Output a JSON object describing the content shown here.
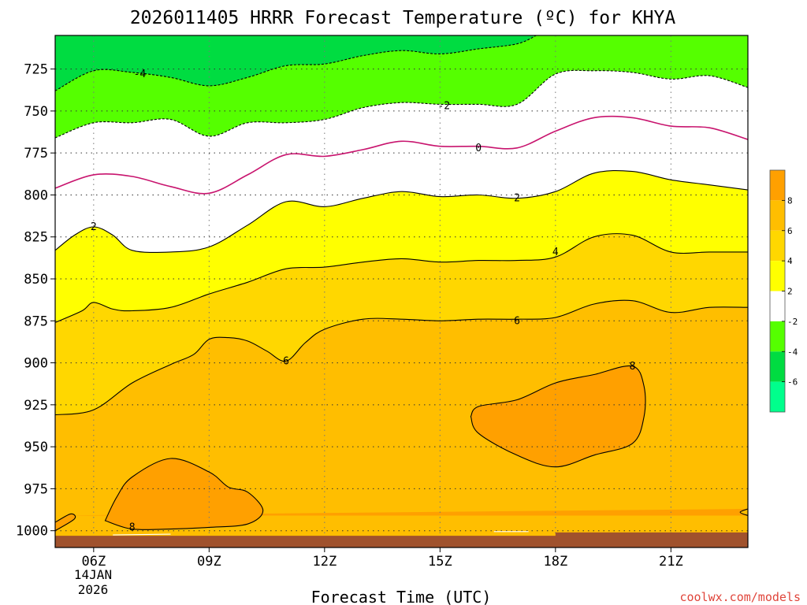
{
  "chart_data": {
    "type": "contour",
    "title": "2026011405 HRRR Forecast Temperature (ºC) for KHYA",
    "xlabel": "Forecast Time (UTC)",
    "ylabel": "",
    "date_label": [
      "14JAN",
      "2026"
    ],
    "credit": "coolwx.com/models",
    "x_range_hours": [
      5,
      23
    ],
    "y_range_hpa": [
      1010,
      705
    ],
    "x_ticks": [
      {
        "hour": 6,
        "label": "06Z"
      },
      {
        "hour": 9,
        "label": "09Z"
      },
      {
        "hour": 12,
        "label": "12Z"
      },
      {
        "hour": 15,
        "label": "15Z"
      },
      {
        "hour": 18,
        "label": "18Z"
      },
      {
        "hour": 21,
        "label": "21Z"
      }
    ],
    "y_ticks": [
      {
        "hpa": 725,
        "label": "725"
      },
      {
        "hpa": 750,
        "label": "750"
      },
      {
        "hpa": 775,
        "label": "775"
      },
      {
        "hpa": 800,
        "label": "800"
      },
      {
        "hpa": 825,
        "label": "825"
      },
      {
        "hpa": 850,
        "label": "850"
      },
      {
        "hpa": 875,
        "label": "875"
      },
      {
        "hpa": 900,
        "label": "900"
      },
      {
        "hpa": 925,
        "label": "925"
      },
      {
        "hpa": 950,
        "label": "950"
      },
      {
        "hpa": 975,
        "label": "975"
      },
      {
        "hpa": 1000,
        "label": "1000"
      }
    ],
    "colors": {
      "above_8": "#ffa000",
      "6_to_8": "#ffbe00",
      "4_to_6": "#ffd700",
      "2_to_4": "#ffff00",
      "-2_to_2": "#ffffff",
      "-4_to_-2": "#55ff00",
      "-6_to_-4": "#00dc41",
      "below_-6": "#00ff8c",
      "zero_line": "#c8146e",
      "ground": "#a0522d",
      "contour_line": "#000000"
    },
    "colorbar": {
      "bands": [
        {
          "color": "#ffa000",
          "from": 8,
          "to": 10
        },
        {
          "color": "#ffbe00",
          "from": 6,
          "to": 8
        },
        {
          "color": "#ffd700",
          "from": 4,
          "to": 6
        },
        {
          "color": "#ffff00",
          "from": 2,
          "to": 4
        },
        {
          "color": "#ffffff",
          "from": -2,
          "to": 2
        },
        {
          "color": "#55ff00",
          "from": -4,
          "to": -2
        },
        {
          "color": "#00dc41",
          "from": -6,
          "to": -4
        },
        {
          "color": "#00ff8c",
          "from": -8,
          "to": -6
        }
      ],
      "tick_labels": [
        "8",
        "6",
        "4",
        "2",
        "-2",
        "-4",
        "-6"
      ]
    },
    "isotherms": [
      {
        "level": -4,
        "style": "dashed",
        "label": "-4",
        "label_at": [
          7.2,
          728
        ],
        "points": [
          [
            5,
            738
          ],
          [
            6,
            726
          ],
          [
            7,
            727
          ],
          [
            8,
            730
          ],
          [
            9,
            735
          ],
          [
            10,
            730
          ],
          [
            11,
            723
          ],
          [
            12,
            722
          ],
          [
            13,
            717
          ],
          [
            14,
            714
          ],
          [
            15,
            716
          ],
          [
            16,
            713
          ],
          [
            17,
            710
          ],
          [
            17.5,
            705
          ]
        ]
      },
      {
        "level": -2,
        "style": "dashed",
        "label": "-2",
        "label_at": [
          15.1,
          747
        ],
        "points": [
          [
            5,
            766
          ],
          [
            6,
            757
          ],
          [
            7,
            757
          ],
          [
            8,
            755
          ],
          [
            9,
            765
          ],
          [
            10,
            757
          ],
          [
            11,
            757
          ],
          [
            12,
            755
          ],
          [
            13,
            748
          ],
          [
            14,
            745
          ],
          [
            15,
            746
          ],
          [
            16,
            746
          ],
          [
            17,
            746
          ],
          [
            18,
            728
          ],
          [
            19,
            726
          ],
          [
            20,
            727
          ],
          [
            21,
            731
          ],
          [
            22,
            729
          ],
          [
            23,
            736
          ]
        ]
      },
      {
        "level": 0,
        "style": "solid",
        "label": "0",
        "label_at": [
          16,
          772
        ],
        "points": [
          [
            5,
            796
          ],
          [
            6,
            788
          ],
          [
            7,
            789
          ],
          [
            8,
            795
          ],
          [
            9,
            799
          ],
          [
            10,
            788
          ],
          [
            11,
            776
          ],
          [
            12,
            777
          ],
          [
            13,
            773
          ],
          [
            14,
            768
          ],
          [
            15,
            771
          ],
          [
            16,
            771
          ],
          [
            17,
            772
          ],
          [
            18,
            762
          ],
          [
            19,
            754
          ],
          [
            20,
            754
          ],
          [
            21,
            759
          ],
          [
            22,
            760
          ],
          [
            23,
            767
          ]
        ]
      },
      {
        "level": 2,
        "style": "solid",
        "label": "2",
        "label_at": [
          6,
          819
        ],
        "label2": "2",
        "label2_at": [
          17,
          802
        ],
        "points": [
          [
            5,
            833
          ],
          [
            5.5,
            824
          ],
          [
            6,
            819
          ],
          [
            6.5,
            824
          ],
          [
            7,
            833
          ],
          [
            8,
            834
          ],
          [
            9,
            831
          ],
          [
            10,
            818
          ],
          [
            11,
            804
          ],
          [
            12,
            807
          ],
          [
            13,
            802
          ],
          [
            14,
            798
          ],
          [
            15,
            801
          ],
          [
            16,
            800
          ],
          [
            17,
            802
          ],
          [
            18,
            798
          ],
          [
            19,
            787
          ],
          [
            20,
            786
          ],
          [
            21,
            791
          ],
          [
            22,
            794
          ],
          [
            23,
            797
          ]
        ]
      },
      {
        "level": 4,
        "style": "solid",
        "label": "4",
        "label_at": [
          18,
          834
        ],
        "points": [
          [
            5,
            876
          ],
          [
            5.7,
            869
          ],
          [
            6,
            864
          ],
          [
            6.5,
            868
          ],
          [
            7,
            869
          ],
          [
            8,
            867
          ],
          [
            9,
            859
          ],
          [
            10,
            852
          ],
          [
            11,
            844
          ],
          [
            12,
            843
          ],
          [
            13,
            840
          ],
          [
            14,
            838
          ],
          [
            15,
            840
          ],
          [
            16,
            839
          ],
          [
            17,
            839
          ],
          [
            18,
            837
          ],
          [
            19,
            825
          ],
          [
            20,
            824
          ],
          [
            21,
            834
          ],
          [
            22,
            834
          ],
          [
            23,
            834
          ]
        ]
      },
      {
        "level": 6,
        "style": "solid",
        "label": "6",
        "label_at": [
          17,
          875
        ],
        "label2": "6",
        "label2_at": [
          11,
          899
        ],
        "points": [
          [
            5,
            931
          ],
          [
            6,
            928
          ],
          [
            7,
            912
          ],
          [
            8,
            901
          ],
          [
            8.6,
            895
          ],
          [
            9,
            886
          ],
          [
            9.5,
            885
          ],
          [
            10,
            887
          ],
          [
            10.5,
            893
          ],
          [
            11,
            899
          ],
          [
            11.5,
            888
          ],
          [
            12,
            880
          ],
          [
            13,
            874
          ],
          [
            14,
            874
          ],
          [
            15,
            875
          ],
          [
            16,
            874
          ],
          [
            17,
            874
          ],
          [
            18,
            873
          ],
          [
            19,
            865
          ],
          [
            20,
            863
          ],
          [
            21,
            870
          ],
          [
            22,
            867
          ],
          [
            23,
            867
          ]
        ]
      },
      {
        "level": 8,
        "style": "closed",
        "label": "8",
        "label_at": [
          7,
          998
        ],
        "points": [
          [
            6.3,
            994
          ],
          [
            6.6,
            980
          ],
          [
            7,
            968
          ],
          [
            8,
            957
          ],
          [
            9,
            965
          ],
          [
            9.5,
            974
          ],
          [
            10,
            977
          ],
          [
            10.4,
            988
          ],
          [
            10,
            996
          ],
          [
            9,
            998
          ],
          [
            8,
            999
          ],
          [
            7,
            999
          ],
          [
            6.3,
            994
          ]
        ]
      },
      {
        "level": 8,
        "style": "closed",
        "label": "8",
        "label_at": [
          20,
          902
        ],
        "points": [
          [
            15.8,
            932
          ],
          [
            16,
            926
          ],
          [
            17,
            922
          ],
          [
            18,
            912
          ],
          [
            19,
            907
          ],
          [
            20,
            902
          ],
          [
            20.3,
            914
          ],
          [
            20.3,
            932
          ],
          [
            20,
            948
          ],
          [
            19,
            955
          ],
          [
            18,
            962
          ],
          [
            17,
            955
          ],
          [
            16,
            942
          ],
          [
            15.8,
            932
          ]
        ]
      },
      {
        "level": 8,
        "style": "open",
        "label": "",
        "points": [
          [
            5,
            995
          ],
          [
            5.4,
            990
          ],
          [
            5.5,
            993
          ],
          [
            5,
            1000
          ]
        ]
      },
      {
        "level": 8,
        "style": "open",
        "label": "",
        "points": [
          [
            23,
            987
          ],
          [
            22.8,
            989
          ],
          [
            23,
            991
          ]
        ]
      }
    ],
    "ground_top_hpa": [
      [
        5,
        1003
      ],
      [
        18,
        1003
      ],
      [
        18,
        1001
      ],
      [
        23,
        1001
      ]
    ]
  }
}
